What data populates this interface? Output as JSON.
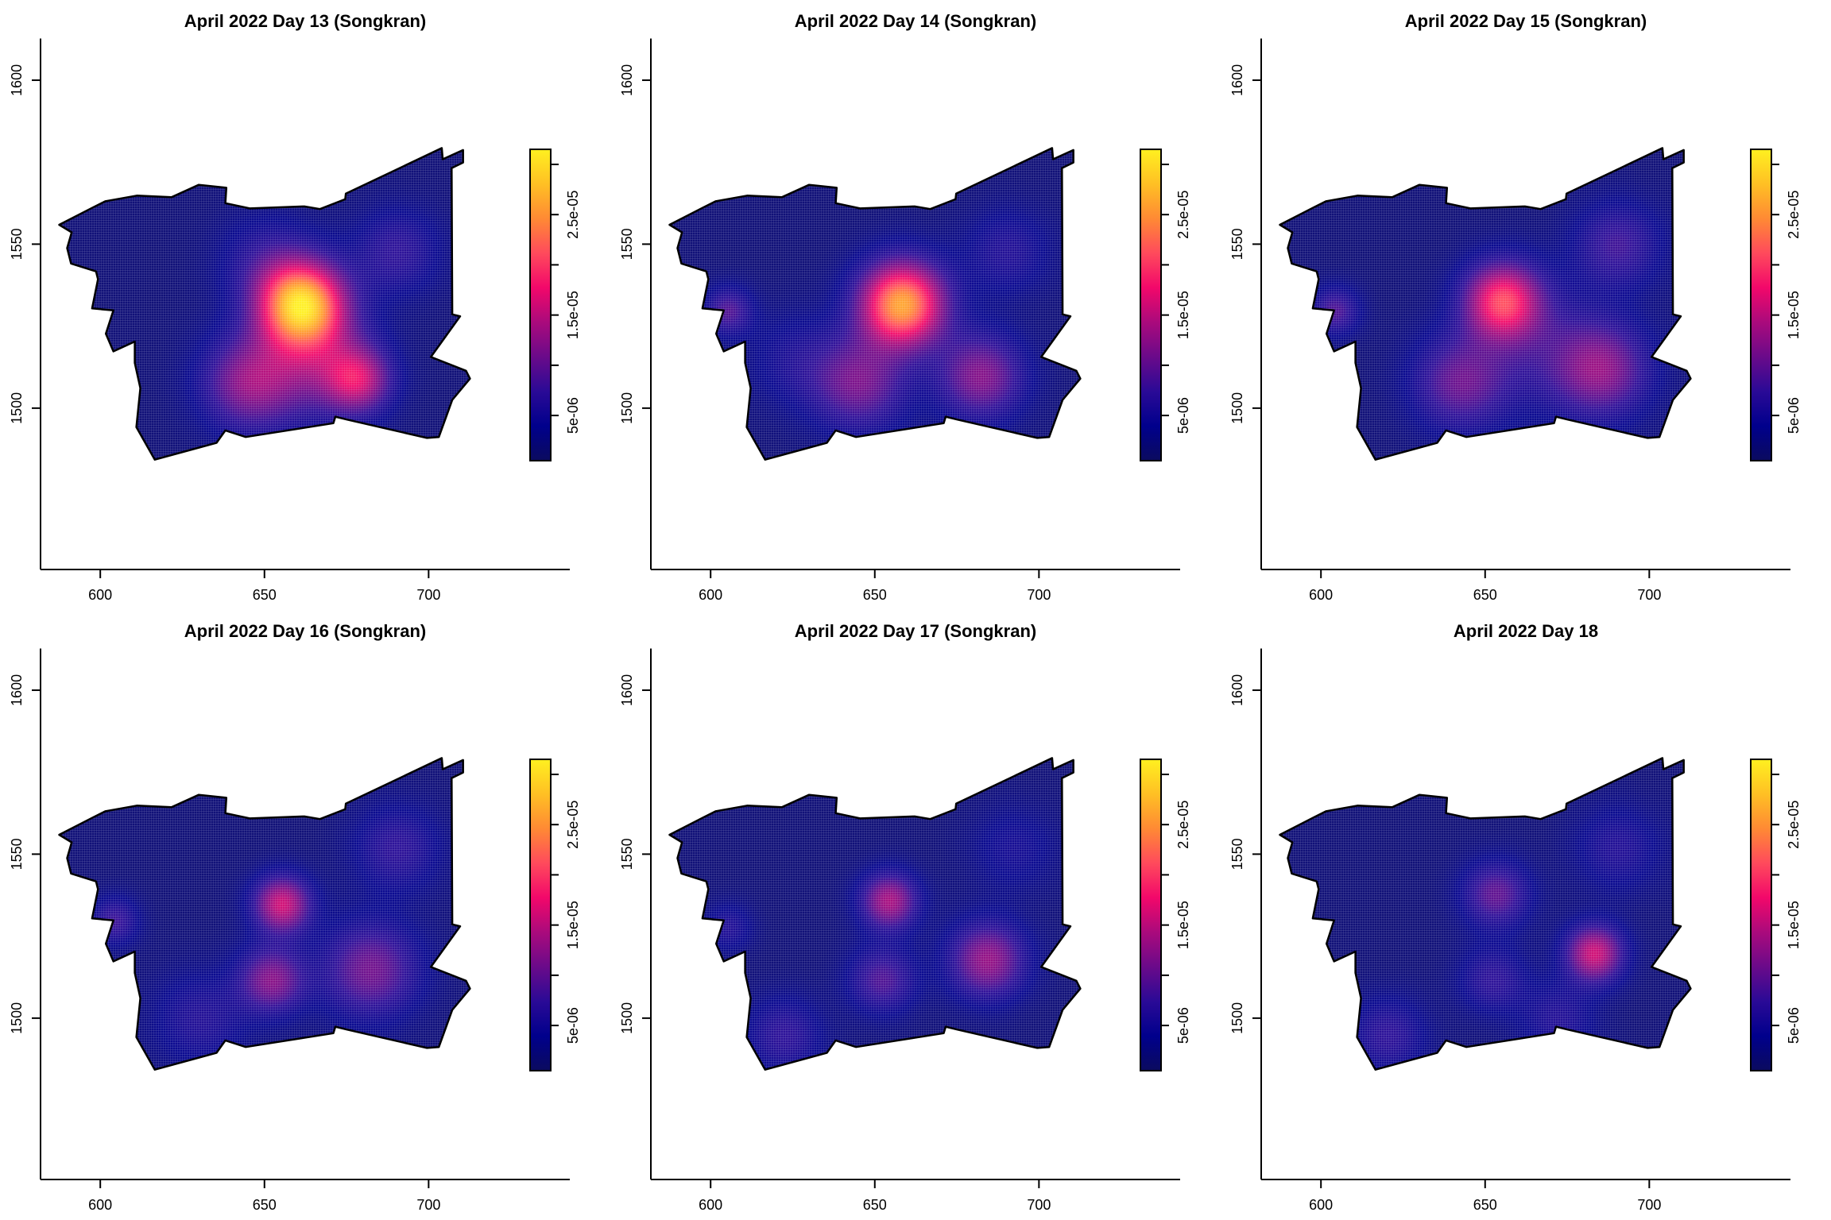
{
  "map_boundary": {
    "units": "map coordinates",
    "x": [
      587.5,
      598.0,
      601.6,
      611.1,
      621.7,
      630.0,
      638.4,
      638.1,
      645.5,
      662.1,
      666.9,
      674.6,
      674.8,
      704.0,
      704.3,
      710.5,
      710.5,
      707.0,
      707.2,
      709.6,
      700.7,
      711.4,
      712.6,
      707.2,
      703.1,
      699.5,
      675.2,
      671.6,
      671.0,
      644.3,
      638.1,
      635.4,
      616.6,
      611.0,
      612.2,
      610.5,
      610.5,
      604.0,
      601.7,
      604.0,
      597.5,
      599.3,
      598.7,
      591.1,
      589.9,
      591.3
    ],
    "y": [
      1555.9,
      1561.3,
      1563.1,
      1564.8,
      1564.3,
      1568.1,
      1567.2,
      1562.5,
      1560.9,
      1561.5,
      1560.7,
      1563.7,
      1565.4,
      1579.3,
      1575.9,
      1578.7,
      1574.9,
      1573.2,
      1528.6,
      1528.0,
      1515.6,
      1511.4,
      1509.0,
      1502.5,
      1491.2,
      1490.9,
      1496.5,
      1497.4,
      1495.4,
      1491.2,
      1493.2,
      1489.4,
      1484.3,
      1494.2,
      1506.1,
      1513.8,
      1520.3,
      1517.3,
      1522.7,
      1529.8,
      1530.4,
      1539.3,
      1541.7,
      1544.1,
      1548.8,
      1553.6
    ]
  },
  "colormap": [
    "#0b0b5e",
    "#00008c",
    "#2a0a96",
    "#6a0a8a",
    "#aa0a7c",
    "#f2086a",
    "#ff4a5c",
    "#ff8a34",
    "#ffc024",
    "#fff020"
  ],
  "chart_data": [
    {
      "type": "heatmap",
      "title": "April 2022 Day 13 (Songkran)",
      "xlim": [
        581.8,
        743
      ],
      "ylim": [
        1450.8,
        1612.7
      ],
      "xticks": [
        600,
        650,
        700
      ],
      "xtick_labels": [
        "600",
        "650",
        "700"
      ],
      "yticks": [
        1500,
        1550,
        1600
      ],
      "ytick_labels": [
        "1500",
        "1550",
        "1600"
      ],
      "colorbar": {
        "range": [
          5e-07,
          3.15e-05
        ],
        "ticks": [
          5e-06,
          1e-05,
          1.5e-05,
          2e-05,
          2.5e-05,
          3e-05
        ],
        "labels": [
          {
            "value": 5e-06,
            "text": "5e-06"
          },
          {
            "value": 1.5e-05,
            "text": "1.5e-05"
          },
          {
            "value": 2.5e-05,
            "text": "2.5e-05"
          }
        ]
      },
      "background": 2e-06,
      "hotspots": [
        {
          "x": 661,
          "y": 1532,
          "value": 2.6e-05,
          "spread": 9
        },
        {
          "x": 678,
          "y": 1509,
          "value": 1.2e-05,
          "spread": 7
        },
        {
          "x": 645,
          "y": 1508,
          "value": 1e-05,
          "spread": 10
        },
        {
          "x": 665,
          "y": 1515,
          "value": 8e-06,
          "spread": 12
        },
        {
          "x": 690,
          "y": 1548,
          "value": 5e-06,
          "spread": 9
        },
        {
          "x": 650,
          "y": 1545,
          "value": 4e-06,
          "spread": 10
        }
      ]
    },
    {
      "type": "heatmap",
      "title": "April 2022 Day 14 (Songkran)",
      "xlim": [
        581.8,
        743
      ],
      "ylim": [
        1450.8,
        1612.7
      ],
      "xticks": [
        600,
        650,
        700
      ],
      "xtick_labels": [
        "600",
        "650",
        "700"
      ],
      "yticks": [
        1500,
        1550,
        1600
      ],
      "ytick_labels": [
        "1500",
        "1550",
        "1600"
      ],
      "colorbar": {
        "range": [
          5e-07,
          3.15e-05
        ],
        "ticks": [
          5e-06,
          1e-05,
          1.5e-05,
          2e-05,
          2.5e-05,
          3e-05
        ],
        "labels": [
          {
            "value": 5e-06,
            "text": "5e-06"
          },
          {
            "value": 1.5e-05,
            "text": "1.5e-05"
          },
          {
            "value": 2.5e-05,
            "text": "2.5e-05"
          }
        ]
      },
      "background": 2e-06,
      "hotspots": [
        {
          "x": 658,
          "y": 1532,
          "value": 2.4e-05,
          "spread": 9
        },
        {
          "x": 682,
          "y": 1510,
          "value": 1e-05,
          "spread": 9
        },
        {
          "x": 645,
          "y": 1508,
          "value": 9e-06,
          "spread": 10
        },
        {
          "x": 605,
          "y": 1530,
          "value": 7e-06,
          "spread": 5
        },
        {
          "x": 690,
          "y": 1548,
          "value": 4e-06,
          "spread": 9
        },
        {
          "x": 625,
          "y": 1515,
          "value": 3e-06,
          "spread": 10
        }
      ]
    },
    {
      "type": "heatmap",
      "title": "April 2022 Day 15 (Songkran)",
      "xlim": [
        581.8,
        743
      ],
      "ylim": [
        1450.8,
        1612.7
      ],
      "xticks": [
        600,
        650,
        700
      ],
      "xtick_labels": [
        "600",
        "650",
        "700"
      ],
      "yticks": [
        1500,
        1550,
        1600
      ],
      "ytick_labels": [
        "1500",
        "1550",
        "1600"
      ],
      "colorbar": {
        "range": [
          5e-07,
          3.15e-05
        ],
        "ticks": [
          5e-06,
          1e-05,
          1.5e-05,
          2e-05,
          2.5e-05,
          3e-05
        ],
        "labels": [
          {
            "value": 5e-06,
            "text": "5e-06"
          },
          {
            "value": 1.5e-05,
            "text": "1.5e-05"
          },
          {
            "value": 2.5e-05,
            "text": "2.5e-05"
          }
        ]
      },
      "background": 2e-06,
      "hotspots": [
        {
          "x": 655,
          "y": 1533,
          "value": 1.7e-05,
          "spread": 8
        },
        {
          "x": 685,
          "y": 1512,
          "value": 1e-05,
          "spread": 10
        },
        {
          "x": 642,
          "y": 1508,
          "value": 8e-06,
          "spread": 10
        },
        {
          "x": 604,
          "y": 1530,
          "value": 7e-06,
          "spread": 5
        },
        {
          "x": 690,
          "y": 1550,
          "value": 6e-06,
          "spread": 9
        },
        {
          "x": 665,
          "y": 1520,
          "value": 4e-06,
          "spread": 14
        }
      ]
    },
    {
      "type": "heatmap",
      "title": "April 2022 Day 16 (Songkran)",
      "xlim": [
        581.8,
        743
      ],
      "ylim": [
        1450.8,
        1612.7
      ],
      "xticks": [
        600,
        650,
        700
      ],
      "xtick_labels": [
        "600",
        "650",
        "700"
      ],
      "yticks": [
        1500,
        1550,
        1600
      ],
      "ytick_labels": [
        "1500",
        "1550",
        "1600"
      ],
      "colorbar": {
        "range": [
          5e-07,
          3.15e-05
        ],
        "ticks": [
          5e-06,
          1e-05,
          1.5e-05,
          2e-05,
          2.5e-05,
          3e-05
        ],
        "labels": [
          {
            "value": 5e-06,
            "text": "5e-06"
          },
          {
            "value": 1.5e-05,
            "text": "1.5e-05"
          },
          {
            "value": 2.5e-05,
            "text": "2.5e-05"
          }
        ]
      },
      "background": 2e-06,
      "hotspots": [
        {
          "x": 655,
          "y": 1535,
          "value": 1.4e-05,
          "spread": 6
        },
        {
          "x": 652,
          "y": 1512,
          "value": 1e-05,
          "spread": 7
        },
        {
          "x": 682,
          "y": 1515,
          "value": 9e-06,
          "spread": 10
        },
        {
          "x": 604,
          "y": 1530,
          "value": 6e-06,
          "spread": 5
        },
        {
          "x": 690,
          "y": 1552,
          "value": 5e-06,
          "spread": 9
        },
        {
          "x": 630,
          "y": 1500,
          "value": 4e-06,
          "spread": 10
        }
      ]
    },
    {
      "type": "heatmap",
      "title": "April 2022 Day 17 (Songkran)",
      "xlim": [
        581.8,
        743
      ],
      "ylim": [
        1450.8,
        1612.7
      ],
      "xticks": [
        600,
        650,
        700
      ],
      "xtick_labels": [
        "600",
        "650",
        "700"
      ],
      "yticks": [
        1500,
        1550,
        1600
      ],
      "ytick_labels": [
        "1500",
        "1550",
        "1600"
      ],
      "colorbar": {
        "range": [
          5e-07,
          3.15e-05
        ],
        "ticks": [
          5e-06,
          1e-05,
          1.5e-05,
          2e-05,
          2.5e-05,
          3e-05
        ],
        "labels": [
          {
            "value": 5e-06,
            "text": "5e-06"
          },
          {
            "value": 1.5e-05,
            "text": "1.5e-05"
          },
          {
            "value": 2.5e-05,
            "text": "2.5e-05"
          }
        ]
      },
      "background": 2e-06,
      "hotspots": [
        {
          "x": 654,
          "y": 1536,
          "value": 1.2e-05,
          "spread": 6
        },
        {
          "x": 652,
          "y": 1512,
          "value": 7e-06,
          "spread": 7
        },
        {
          "x": 684,
          "y": 1518,
          "value": 1.1e-05,
          "spread": 8
        },
        {
          "x": 622,
          "y": 1495,
          "value": 5e-06,
          "spread": 8
        },
        {
          "x": 605,
          "y": 1528,
          "value": 4e-06,
          "spread": 5
        },
        {
          "x": 692,
          "y": 1552,
          "value": 3e-06,
          "spread": 9
        }
      ]
    },
    {
      "type": "heatmap",
      "title": "April 2022 Day 18",
      "xlim": [
        581.8,
        743
      ],
      "ylim": [
        1450.8,
        1612.7
      ],
      "xticks": [
        600,
        650,
        700
      ],
      "xtick_labels": [
        "600",
        "650",
        "700"
      ],
      "yticks": [
        1500,
        1550,
        1600
      ],
      "ytick_labels": [
        "1500",
        "1550",
        "1600"
      ],
      "colorbar": {
        "range": [
          5e-07,
          3.15e-05
        ],
        "ticks": [
          5e-06,
          1e-05,
          1.5e-05,
          2e-05,
          2.5e-05,
          3e-05
        ],
        "labels": [
          {
            "value": 5e-06,
            "text": "5e-06"
          },
          {
            "value": 1.5e-05,
            "text": "1.5e-05"
          },
          {
            "value": 2.5e-05,
            "text": "2.5e-05"
          }
        ]
      },
      "background": 2e-06,
      "hotspots": [
        {
          "x": 683,
          "y": 1520,
          "value": 1.4e-05,
          "spread": 6
        },
        {
          "x": 653,
          "y": 1538,
          "value": 8e-06,
          "spread": 7
        },
        {
          "x": 652,
          "y": 1512,
          "value": 5e-06,
          "spread": 7
        },
        {
          "x": 620,
          "y": 1495,
          "value": 5e-06,
          "spread": 8
        },
        {
          "x": 690,
          "y": 1552,
          "value": 4e-06,
          "spread": 9
        },
        {
          "x": 672,
          "y": 1500,
          "value": 4e-06,
          "spread": 8
        }
      ]
    }
  ]
}
